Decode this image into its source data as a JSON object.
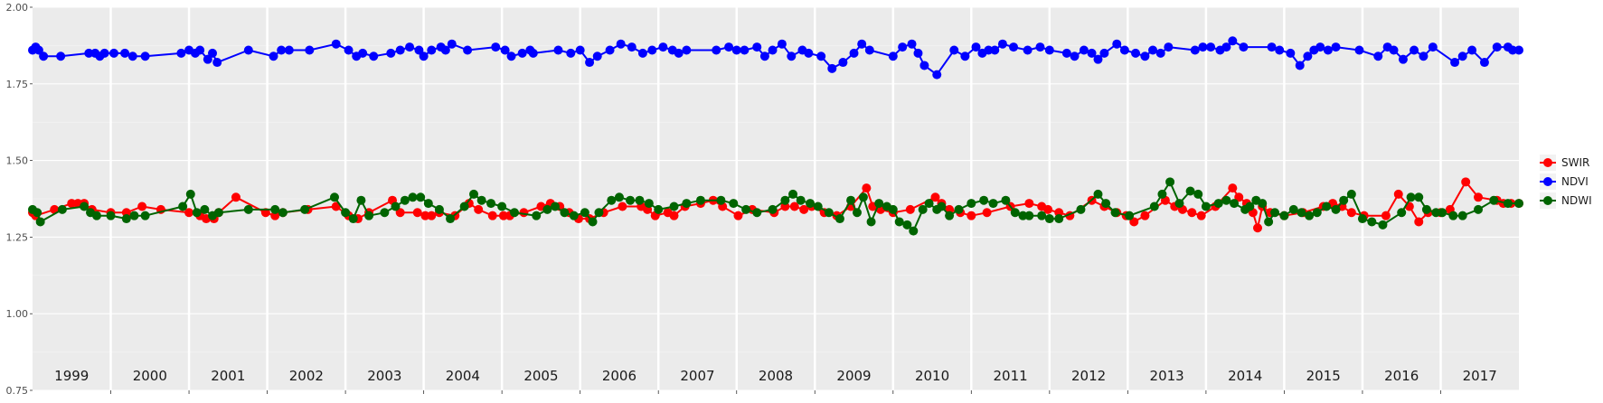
{
  "chart_data": {
    "type": "line",
    "title": "",
    "xlabel": "",
    "ylabel": "",
    "xlim": [
      1999.0,
      2018.0
    ],
    "ylim": [
      0.75,
      2.0
    ],
    "yticks": [
      "0.75",
      "1.00",
      "1.25",
      "1.50",
      "1.75",
      "2.00"
    ],
    "ytick_values": [
      0.75,
      1.0,
      1.25,
      1.5,
      1.75,
      2.0
    ],
    "year_labels": [
      "1999",
      "2000",
      "2001",
      "2002",
      "2003",
      "2004",
      "2005",
      "2006",
      "2007",
      "2008",
      "2009",
      "2010",
      "2011",
      "2012",
      "2013",
      "2014",
      "2015",
      "2016",
      "2017"
    ],
    "grid": true,
    "legend_position": "right",
    "series": [
      {
        "name": "SWIR",
        "color": "#ff0000",
        "x": [
          1999.0,
          1999.04,
          1999.28,
          1999.5,
          1999.58,
          1999.66,
          1999.76,
          2000.0,
          2000.2,
          2000.4,
          2000.64,
          2001.0,
          2001.14,
          2001.22,
          2001.32,
          2001.38,
          2001.6,
          2001.98,
          2002.1,
          2002.2,
          2002.52,
          2002.88,
          2003.04,
          2003.16,
          2003.3,
          2003.6,
          2003.7,
          2003.92,
          2004.02,
          2004.1,
          2004.2,
          2004.4,
          2004.58,
          2004.7,
          2004.88,
          2005.02,
          2005.1,
          2005.28,
          2005.5,
          2005.62,
          2005.74,
          2005.86,
          2005.98,
          2006.12,
          2006.3,
          2006.54,
          2006.78,
          2006.86,
          2006.96,
          2007.12,
          2007.2,
          2007.34,
          2007.54,
          2007.7,
          2007.82,
          2008.02,
          2008.2,
          2008.48,
          2008.62,
          2008.74,
          2008.86,
          2008.96,
          2009.12,
          2009.28,
          2009.46,
          2009.66,
          2009.74,
          2009.84,
          2010.0,
          2010.22,
          2010.54,
          2010.62,
          2010.72,
          2010.86,
          2011.0,
          2011.2,
          2011.5,
          2011.74,
          2011.9,
          2011.98,
          2012.12,
          2012.26,
          2012.54,
          2012.7,
          2012.86,
          2012.98,
          2013.08,
          2013.22,
          2013.48,
          2013.6,
          2013.7,
          2013.82,
          2013.94,
          2014.12,
          2014.34,
          2014.42,
          2014.52,
          2014.6,
          2014.66,
          2014.72,
          2014.82,
          2015.0,
          2015.24,
          2015.5,
          2015.62,
          2015.74,
          2015.86,
          2016.02,
          2016.3,
          2016.46,
          2016.6,
          2016.72,
          2016.84,
          2017.0,
          2017.12,
          2017.32,
          2017.48,
          2017.72,
          2017.8,
          2017.9,
          2018.0
        ],
        "values": [
          1.33,
          1.32,
          1.34,
          1.36,
          1.36,
          1.36,
          1.34,
          1.33,
          1.33,
          1.35,
          1.34,
          1.33,
          1.32,
          1.31,
          1.31,
          1.33,
          1.38,
          1.33,
          1.32,
          1.33,
          1.34,
          1.35,
          1.32,
          1.31,
          1.33,
          1.37,
          1.33,
          1.33,
          1.32,
          1.32,
          1.33,
          1.32,
          1.36,
          1.34,
          1.32,
          1.32,
          1.32,
          1.33,
          1.35,
          1.36,
          1.35,
          1.33,
          1.31,
          1.31,
          1.33,
          1.35,
          1.35,
          1.34,
          1.32,
          1.33,
          1.32,
          1.35,
          1.36,
          1.37,
          1.35,
          1.32,
          1.34,
          1.33,
          1.35,
          1.35,
          1.34,
          1.35,
          1.33,
          1.32,
          1.35,
          1.41,
          1.35,
          1.34,
          1.33,
          1.34,
          1.38,
          1.36,
          1.34,
          1.33,
          1.32,
          1.33,
          1.35,
          1.36,
          1.35,
          1.34,
          1.33,
          1.32,
          1.37,
          1.35,
          1.33,
          1.32,
          1.3,
          1.32,
          1.37,
          1.35,
          1.34,
          1.33,
          1.32,
          1.35,
          1.41,
          1.38,
          1.36,
          1.33,
          1.28,
          1.35,
          1.33,
          1.32,
          1.33,
          1.35,
          1.36,
          1.35,
          1.33,
          1.32,
          1.32,
          1.39,
          1.35,
          1.3,
          1.33,
          1.33,
          1.34,
          1.43,
          1.38,
          1.37,
          1.36,
          1.36,
          1.36
        ]
      },
      {
        "name": "NDVI",
        "color": "#0000ff",
        "x": [
          1999.0,
          1999.04,
          1999.08,
          1999.14,
          1999.36,
          1999.72,
          1999.8,
          1999.86,
          1999.92,
          2000.04,
          2000.18,
          2000.28,
          2000.44,
          2000.9,
          2001.0,
          2001.08,
          2001.14,
          2001.24,
          2001.3,
          2001.36,
          2001.76,
          2002.08,
          2002.18,
          2002.28,
          2002.54,
          2002.88,
          2003.04,
          2003.14,
          2003.22,
          2003.36,
          2003.58,
          2003.7,
          2003.82,
          2003.94,
          2004.0,
          2004.1,
          2004.22,
          2004.28,
          2004.36,
          2004.56,
          2004.92,
          2005.04,
          2005.12,
          2005.26,
          2005.36,
          2005.4,
          2005.72,
          2005.88,
          2006.0,
          2006.12,
          2006.22,
          2006.38,
          2006.52,
          2006.66,
          2006.8,
          2006.92,
          2007.06,
          2007.18,
          2007.26,
          2007.36,
          2007.74,
          2007.9,
          2008.0,
          2008.1,
          2008.26,
          2008.36,
          2008.46,
          2008.58,
          2008.7,
          2008.84,
          2008.92,
          2009.08,
          2009.22,
          2009.36,
          2009.5,
          2009.6,
          2009.7,
          2010.0,
          2010.12,
          2010.24,
          2010.32,
          2010.4,
          2010.56,
          2010.78,
          2010.92,
          2011.06,
          2011.14,
          2011.22,
          2011.3,
          2011.4,
          2011.54,
          2011.72,
          2011.88,
          2012.0,
          2012.22,
          2012.32,
          2012.44,
          2012.54,
          2012.62,
          2012.7,
          2012.86,
          2012.96,
          2013.1,
          2013.22,
          2013.32,
          2013.42,
          2013.52,
          2013.86,
          2013.96,
          2014.06,
          2014.18,
          2014.26,
          2014.34,
          2014.48,
          2014.84,
          2014.94,
          2015.08,
          2015.2,
          2015.3,
          2015.38,
          2015.46,
          2015.56,
          2015.66,
          2015.96,
          2016.2,
          2016.32,
          2016.4,
          2016.52,
          2016.66,
          2016.78,
          2016.9,
          2017.18,
          2017.28,
          2017.4,
          2017.56,
          2017.72,
          2017.86,
          2017.92,
          2018.0
        ],
        "values": [
          1.86,
          1.87,
          1.86,
          1.84,
          1.84,
          1.85,
          1.85,
          1.84,
          1.85,
          1.85,
          1.85,
          1.84,
          1.84,
          1.85,
          1.86,
          1.85,
          1.86,
          1.83,
          1.85,
          1.82,
          1.86,
          1.84,
          1.86,
          1.86,
          1.86,
          1.88,
          1.86,
          1.84,
          1.85,
          1.84,
          1.85,
          1.86,
          1.87,
          1.86,
          1.84,
          1.86,
          1.87,
          1.86,
          1.88,
          1.86,
          1.87,
          1.86,
          1.84,
          1.85,
          1.86,
          1.85,
          1.86,
          1.85,
          1.86,
          1.82,
          1.84,
          1.86,
          1.88,
          1.87,
          1.85,
          1.86,
          1.87,
          1.86,
          1.85,
          1.86,
          1.86,
          1.87,
          1.86,
          1.86,
          1.87,
          1.84,
          1.86,
          1.88,
          1.84,
          1.86,
          1.85,
          1.84,
          1.8,
          1.82,
          1.85,
          1.88,
          1.86,
          1.84,
          1.87,
          1.88,
          1.85,
          1.81,
          1.78,
          1.86,
          1.84,
          1.87,
          1.85,
          1.86,
          1.86,
          1.88,
          1.87,
          1.86,
          1.87,
          1.86,
          1.85,
          1.84,
          1.86,
          1.85,
          1.83,
          1.85,
          1.88,
          1.86,
          1.85,
          1.84,
          1.86,
          1.85,
          1.87,
          1.86,
          1.87,
          1.87,
          1.86,
          1.87,
          1.89,
          1.87,
          1.87,
          1.86,
          1.85,
          1.81,
          1.84,
          1.86,
          1.87,
          1.86,
          1.87,
          1.86,
          1.84,
          1.87,
          1.86,
          1.83,
          1.86,
          1.84,
          1.87,
          1.82,
          1.84,
          1.86,
          1.82,
          1.87,
          1.87,
          1.86,
          1.86
        ]
      },
      {
        "name": "NDWI",
        "color": "#006400",
        "x": [
          1999.0,
          1999.06,
          1999.1,
          1999.38,
          1999.66,
          1999.74,
          1999.82,
          2000.0,
          2000.2,
          2000.3,
          2000.44,
          2000.92,
          2001.02,
          2001.1,
          2001.2,
          2001.3,
          2001.38,
          2001.76,
          2002.1,
          2002.2,
          2002.48,
          2002.86,
          2003.0,
          2003.1,
          2003.2,
          2003.3,
          2003.5,
          2003.64,
          2003.76,
          2003.86,
          2003.96,
          2004.06,
          2004.2,
          2004.34,
          2004.52,
          2004.64,
          2004.74,
          2004.86,
          2005.0,
          2005.16,
          2005.44,
          2005.58,
          2005.68,
          2005.8,
          2005.92,
          2006.06,
          2006.16,
          2006.24,
          2006.4,
          2006.5,
          2006.64,
          2006.76,
          2006.88,
          2007.0,
          2007.2,
          2007.36,
          2007.54,
          2007.8,
          2007.96,
          2008.12,
          2008.26,
          2008.46,
          2008.62,
          2008.72,
          2008.82,
          2008.94,
          2009.04,
          2009.18,
          2009.32,
          2009.46,
          2009.54,
          2009.62,
          2009.72,
          2009.82,
          2009.92,
          2010.0,
          2010.08,
          2010.18,
          2010.26,
          2010.38,
          2010.46,
          2010.56,
          2010.62,
          2010.72,
          2010.84,
          2011.0,
          2011.16,
          2011.28,
          2011.44,
          2011.56,
          2011.66,
          2011.74,
          2011.9,
          2012.0,
          2012.12,
          2012.4,
          2012.62,
          2012.72,
          2012.84,
          2013.02,
          2013.34,
          2013.44,
          2013.54,
          2013.66,
          2013.8,
          2013.9,
          2014.0,
          2014.16,
          2014.26,
          2014.36,
          2014.5,
          2014.56,
          2014.64,
          2014.72,
          2014.8,
          2014.88,
          2015.0,
          2015.12,
          2015.22,
          2015.32,
          2015.42,
          2015.54,
          2015.66,
          2015.76,
          2015.86,
          2016.0,
          2016.12,
          2016.26,
          2016.5,
          2016.62,
          2016.72,
          2016.82,
          2016.94,
          2017.02,
          2017.16,
          2017.28,
          2017.48,
          2017.68,
          2017.86,
          2018.0
        ],
        "values": [
          1.34,
          1.33,
          1.3,
          1.34,
          1.35,
          1.33,
          1.32,
          1.32,
          1.31,
          1.32,
          1.32,
          1.35,
          1.39,
          1.33,
          1.34,
          1.32,
          1.33,
          1.34,
          1.34,
          1.33,
          1.34,
          1.38,
          1.33,
          1.31,
          1.37,
          1.32,
          1.33,
          1.35,
          1.37,
          1.38,
          1.38,
          1.36,
          1.34,
          1.31,
          1.35,
          1.39,
          1.37,
          1.36,
          1.35,
          1.33,
          1.32,
          1.34,
          1.35,
          1.33,
          1.32,
          1.33,
          1.3,
          1.33,
          1.37,
          1.38,
          1.37,
          1.37,
          1.36,
          1.34,
          1.35,
          1.36,
          1.37,
          1.37,
          1.36,
          1.34,
          1.33,
          1.34,
          1.37,
          1.39,
          1.37,
          1.36,
          1.35,
          1.33,
          1.31,
          1.37,
          1.33,
          1.38,
          1.3,
          1.36,
          1.35,
          1.34,
          1.3,
          1.29,
          1.27,
          1.34,
          1.36,
          1.34,
          1.35,
          1.32,
          1.34,
          1.36,
          1.37,
          1.36,
          1.37,
          1.33,
          1.32,
          1.32,
          1.32,
          1.31,
          1.31,
          1.34,
          1.39,
          1.36,
          1.33,
          1.32,
          1.35,
          1.39,
          1.43,
          1.36,
          1.4,
          1.39,
          1.35,
          1.36,
          1.37,
          1.36,
          1.34,
          1.35,
          1.37,
          1.36,
          1.3,
          1.33,
          1.32,
          1.34,
          1.33,
          1.32,
          1.33,
          1.35,
          1.34,
          1.37,
          1.39,
          1.31,
          1.3,
          1.29,
          1.33,
          1.38,
          1.38,
          1.34,
          1.33,
          1.33,
          1.32,
          1.32,
          1.34,
          1.37,
          1.36,
          1.36
        ]
      }
    ]
  }
}
